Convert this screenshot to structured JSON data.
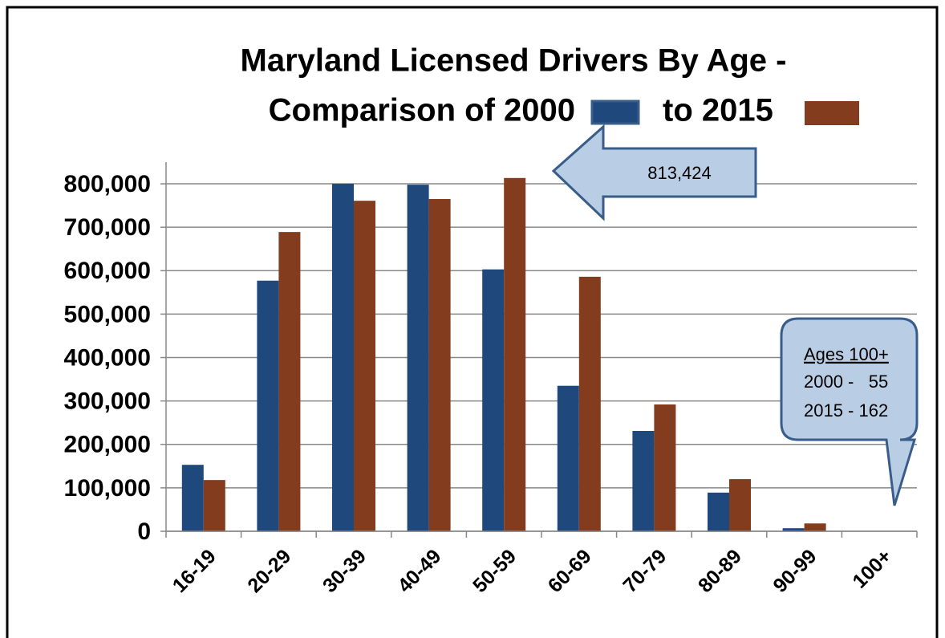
{
  "chart_data": {
    "type": "bar",
    "title": [
      "Maryland Licensed Drivers By Age -",
      "Comparison of 2000",
      "to 2015"
    ],
    "categories": [
      "16-19",
      "20-29",
      "30-39",
      "40-49",
      "50-59",
      "60-69",
      "70-79",
      "80-89",
      "90-99",
      "100+"
    ],
    "series": [
      {
        "color": "#1f497d",
        "values": [
          153000,
          577000,
          800000,
          798000,
          603000,
          335000,
          231000,
          89000,
          7000,
          55
        ]
      },
      {
        "color": "#843c1e",
        "values": [
          118000,
          689000,
          761000,
          765000,
          813424,
          586000,
          292000,
          120000,
          18000,
          162
        ]
      }
    ],
    "ylim": [
      0,
      850000
    ],
    "yticks": [
      0,
      {
        "value": 100000,
        "label": "100,000"
      },
      {
        "value": 200000,
        "label": "200,000"
      },
      {
        "value": 300000,
        "label": "300,000"
      },
      {
        "value": 400000,
        "label": "400,000"
      },
      {
        "value": 500000,
        "label": "500,000"
      },
      {
        "value": 600000,
        "label": "600,000"
      },
      {
        "value": 700000,
        "label": "700,000"
      },
      {
        "value": 800000,
        "label": "800,000"
      }
    ],
    "grid": true,
    "annotations": [
      "813,424",
      "Ages 100+",
      "2000 -   55",
      "2015 - 162"
    ]
  }
}
